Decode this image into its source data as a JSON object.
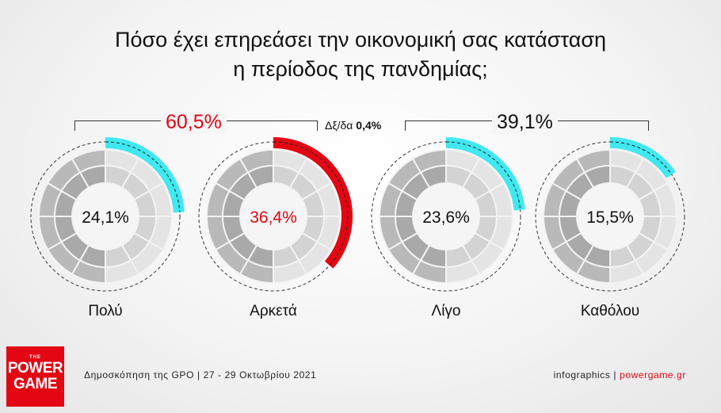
{
  "title": {
    "line1": "Πόσο έχει επηρεάσει την οικονομική σας κατάσταση",
    "line2": "η περίοδος της πανδημίας;"
  },
  "groups": [
    {
      "label": "60,5%",
      "color": "#e30613"
    },
    {
      "label": "39,1%",
      "color": "#111111"
    }
  ],
  "dkna": {
    "label": "Δξ/δα",
    "value": "0,4%"
  },
  "chart_data": {
    "type": "pie",
    "categories": [
      "Πολύ",
      "Αρκετά",
      "Λίγο",
      "Καθόλου"
    ],
    "values": [
      24.1,
      36.4,
      23.6,
      15.5
    ],
    "value_labels": [
      "24,1%",
      "36,4%",
      "23,6%",
      "15,5%"
    ],
    "arc_colors": [
      "#40e8f0",
      "#e30613",
      "#40e8f0",
      "#40e8f0"
    ],
    "center_label_colors": [
      "#111111",
      "#e30613",
      "#111111",
      "#111111"
    ]
  },
  "footer": {
    "source": "Δημοσκόπηση της GPO | 27 - 29 Οκτωβρίου 2021",
    "credit": "infographics | ",
    "site": "powergame.gr"
  },
  "logo": {
    "the": "THE",
    "line1": "POWER",
    "line2": "GAME"
  }
}
